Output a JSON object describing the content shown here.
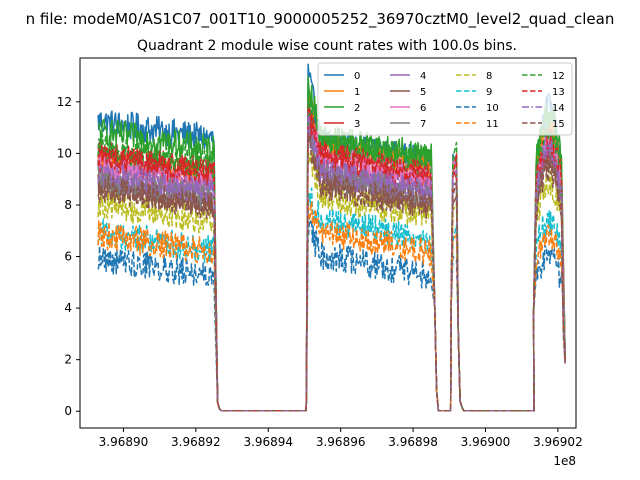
{
  "page": {
    "suptitle": "n file: modeM0/AS1C07_001T10_9000005252_36970cztM0_level2_quad_clean",
    "title": "Quadrant 2 module wise count rates with 100.0s bins."
  },
  "chart_data": {
    "type": "line",
    "title": "Quadrant 2 module wise count rates with 100.0s bins.",
    "xlabel": "",
    "ylabel": "",
    "x_offset_label": "1e8",
    "xlim": [
      3.968888,
      3.969025
    ],
    "ylim": [
      -0.65,
      13.7
    ],
    "x_ticks": [
      3.9689,
      3.96892,
      3.96894,
      3.96896,
      3.96898,
      3.969,
      3.96902
    ],
    "x_tick_labels": [
      "3.96890",
      "3.96892",
      "3.96894",
      "3.96896",
      "3.96898",
      "3.96900",
      "3.96902"
    ],
    "y_ticks": [
      0,
      2,
      4,
      6,
      8,
      10,
      12
    ],
    "y_tick_labels": [
      "0",
      "2",
      "4",
      "6",
      "8",
      "10",
      "12"
    ],
    "grid": false,
    "legend": {
      "position": "top-right",
      "columns": 4
    },
    "segments": [
      {
        "start": 3.968893,
        "end": 3.968925
      },
      {
        "start": 3.968951,
        "end": 3.968985
      },
      {
        "start": 3.968991,
        "end": 3.968992
      },
      {
        "start": 3.969014,
        "end": 3.969021
      }
    ],
    "gaps": [
      {
        "start": 3.968927,
        "end": 3.96895
      },
      {
        "start": 3.968987,
        "end": 3.96899
      },
      {
        "start": 3.968994,
        "end": 3.969013
      }
    ],
    "series": [
      {
        "name": "0",
        "color": "#1f77b4",
        "dash": "solid",
        "level_segment1": 10.9,
        "level_segment2": 10.1,
        "peak": 12.7
      },
      {
        "name": "1",
        "color": "#ff7f0e",
        "dash": "solid",
        "level_segment1": 9.4,
        "level_segment2": 9.9,
        "peak": 11.7
      },
      {
        "name": "2",
        "color": "#2ca02c",
        "dash": "solid",
        "level_segment1": 10.5,
        "level_segment2": 10.3,
        "peak": 12.4
      },
      {
        "name": "3",
        "color": "#d62728",
        "dash": "solid",
        "level_segment1": 9.6,
        "level_segment2": 9.3,
        "peak": 11.4
      },
      {
        "name": "4",
        "color": "#9467bd",
        "dash": "solid",
        "level_segment1": 9.0,
        "level_segment2": 9.0,
        "peak": 11.3
      },
      {
        "name": "5",
        "color": "#8c564b",
        "dash": "solid",
        "level_segment1": 8.4,
        "level_segment2": 8.5,
        "peak": 10.5
      },
      {
        "name": "6",
        "color": "#e377c2",
        "dash": "solid",
        "level_segment1": 9.1,
        "level_segment2": 9.5,
        "peak": 11.0
      },
      {
        "name": "7",
        "color": "#7f7f7f",
        "dash": "solid",
        "level_segment1": 8.6,
        "level_segment2": 8.8,
        "peak": 10.6
      },
      {
        "name": "8",
        "color": "#bcbd22",
        "dash": "dashed",
        "level_segment1": 7.7,
        "level_segment2": 8.0,
        "peak": 9.6
      },
      {
        "name": "9",
        "color": "#17becf",
        "dash": "dashed",
        "level_segment1": 6.6,
        "level_segment2": 7.1,
        "peak": 8.0
      },
      {
        "name": "10",
        "color": "#1f77b4",
        "dash": "dashed",
        "level_segment1": 5.6,
        "level_segment2": 5.7,
        "peak": 6.8
      },
      {
        "name": "11",
        "color": "#ff7f0e",
        "dash": "dashed",
        "level_segment1": 6.5,
        "level_segment2": 6.6,
        "peak": 7.4
      },
      {
        "name": "12",
        "color": "#2ca02c",
        "dash": "dashed",
        "level_segment1": 9.9,
        "level_segment2": 10.1,
        "peak": 11.6
      },
      {
        "name": "13",
        "color": "#d62728",
        "dash": "dashed",
        "level_segment1": 9.5,
        "level_segment2": 9.6,
        "peak": 11.0
      },
      {
        "name": "14",
        "color": "#9467bd",
        "dash": "dashdot",
        "level_segment1": 8.8,
        "level_segment2": 8.9,
        "peak": 10.9
      },
      {
        "name": "15",
        "color": "#8c564b",
        "dash": "dashed",
        "level_segment1": 8.3,
        "level_segment2": 8.4,
        "peak": 10.2
      }
    ]
  }
}
